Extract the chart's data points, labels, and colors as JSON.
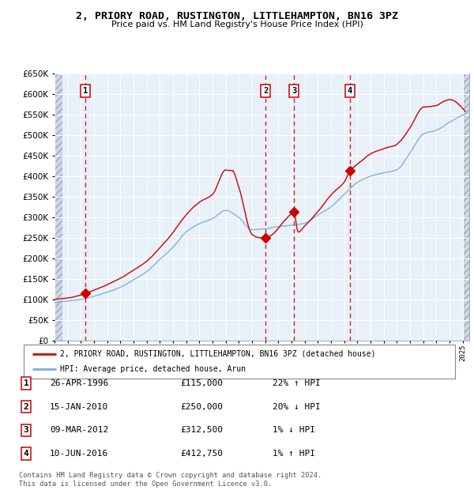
{
  "title": "2, PRIORY ROAD, RUSTINGTON, LITTLEHAMPTON, BN16 3PZ",
  "subtitle": "Price paid vs. HM Land Registry's House Price Index (HPI)",
  "legend_line1": "2, PRIORY ROAD, RUSTINGTON, LITTLEHAMPTON, BN16 3PZ (detached house)",
  "legend_line2": "HPI: Average price, detached house, Arun",
  "footer": "Contains HM Land Registry data © Crown copyright and database right 2024.\nThis data is licensed under the Open Government Licence v3.0.",
  "transactions": [
    {
      "num": 1,
      "date": "26-APR-1996",
      "price": 115000,
      "pct": "22%",
      "dir": "↑",
      "year": 1996.32
    },
    {
      "num": 2,
      "date": "15-JAN-2010",
      "price": 250000,
      "pct": "20%",
      "dir": "↓",
      "year": 2010.04
    },
    {
      "num": 3,
      "date": "09-MAR-2012",
      "price": 312500,
      "pct": "1%",
      "dir": "↓",
      "year": 2012.19
    },
    {
      "num": 4,
      "date": "10-JUN-2016",
      "price": 412750,
      "pct": "1%",
      "dir": "↑",
      "year": 2016.44
    }
  ],
  "ylim": [
    0,
    650000
  ],
  "yticks": [
    0,
    50000,
    100000,
    150000,
    200000,
    250000,
    300000,
    350000,
    400000,
    450000,
    500000,
    550000,
    600000,
    650000
  ],
  "color_price": "#cc0000",
  "color_hpi": "#7aaadd",
  "color_bg_chart": "#e8f0f8",
  "color_grid": "#ffffff",
  "color_dashed": "#cc0000",
  "xlim_left": 1994.0,
  "xlim_right": 2025.5
}
